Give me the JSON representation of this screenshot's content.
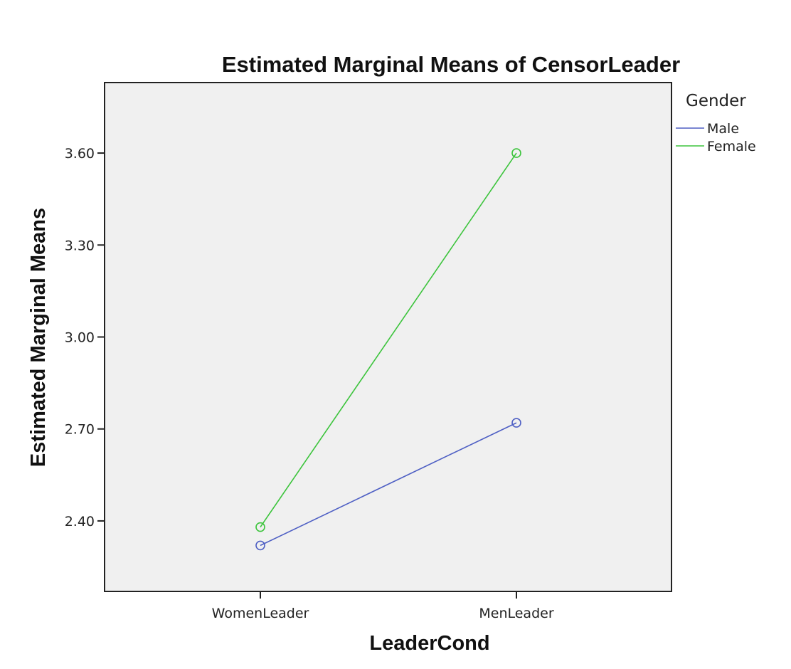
{
  "chart_data": {
    "type": "line",
    "title": "Estimated Marginal Means of CensorLeader",
    "xlabel": "LeaderCond",
    "ylabel": "Estimated Marginal Means",
    "categories": [
      "WomenLeader",
      "MenLeader"
    ],
    "ylim": [
      2.17,
      3.83
    ],
    "yticks": [
      "2.40",
      "2.70",
      "3.00",
      "3.30",
      "3.60"
    ],
    "grid": false,
    "legend": {
      "title": "Gender",
      "placement": "right-top"
    },
    "series": [
      {
        "name": "Male",
        "color": "#4e5fc4",
        "values": [
          2.32,
          2.72
        ]
      },
      {
        "name": "Female",
        "color": "#3cc43c",
        "values": [
          2.38,
          3.6
        ]
      }
    ],
    "marker": "open-circle",
    "plot_background": "#f0f0f0"
  }
}
